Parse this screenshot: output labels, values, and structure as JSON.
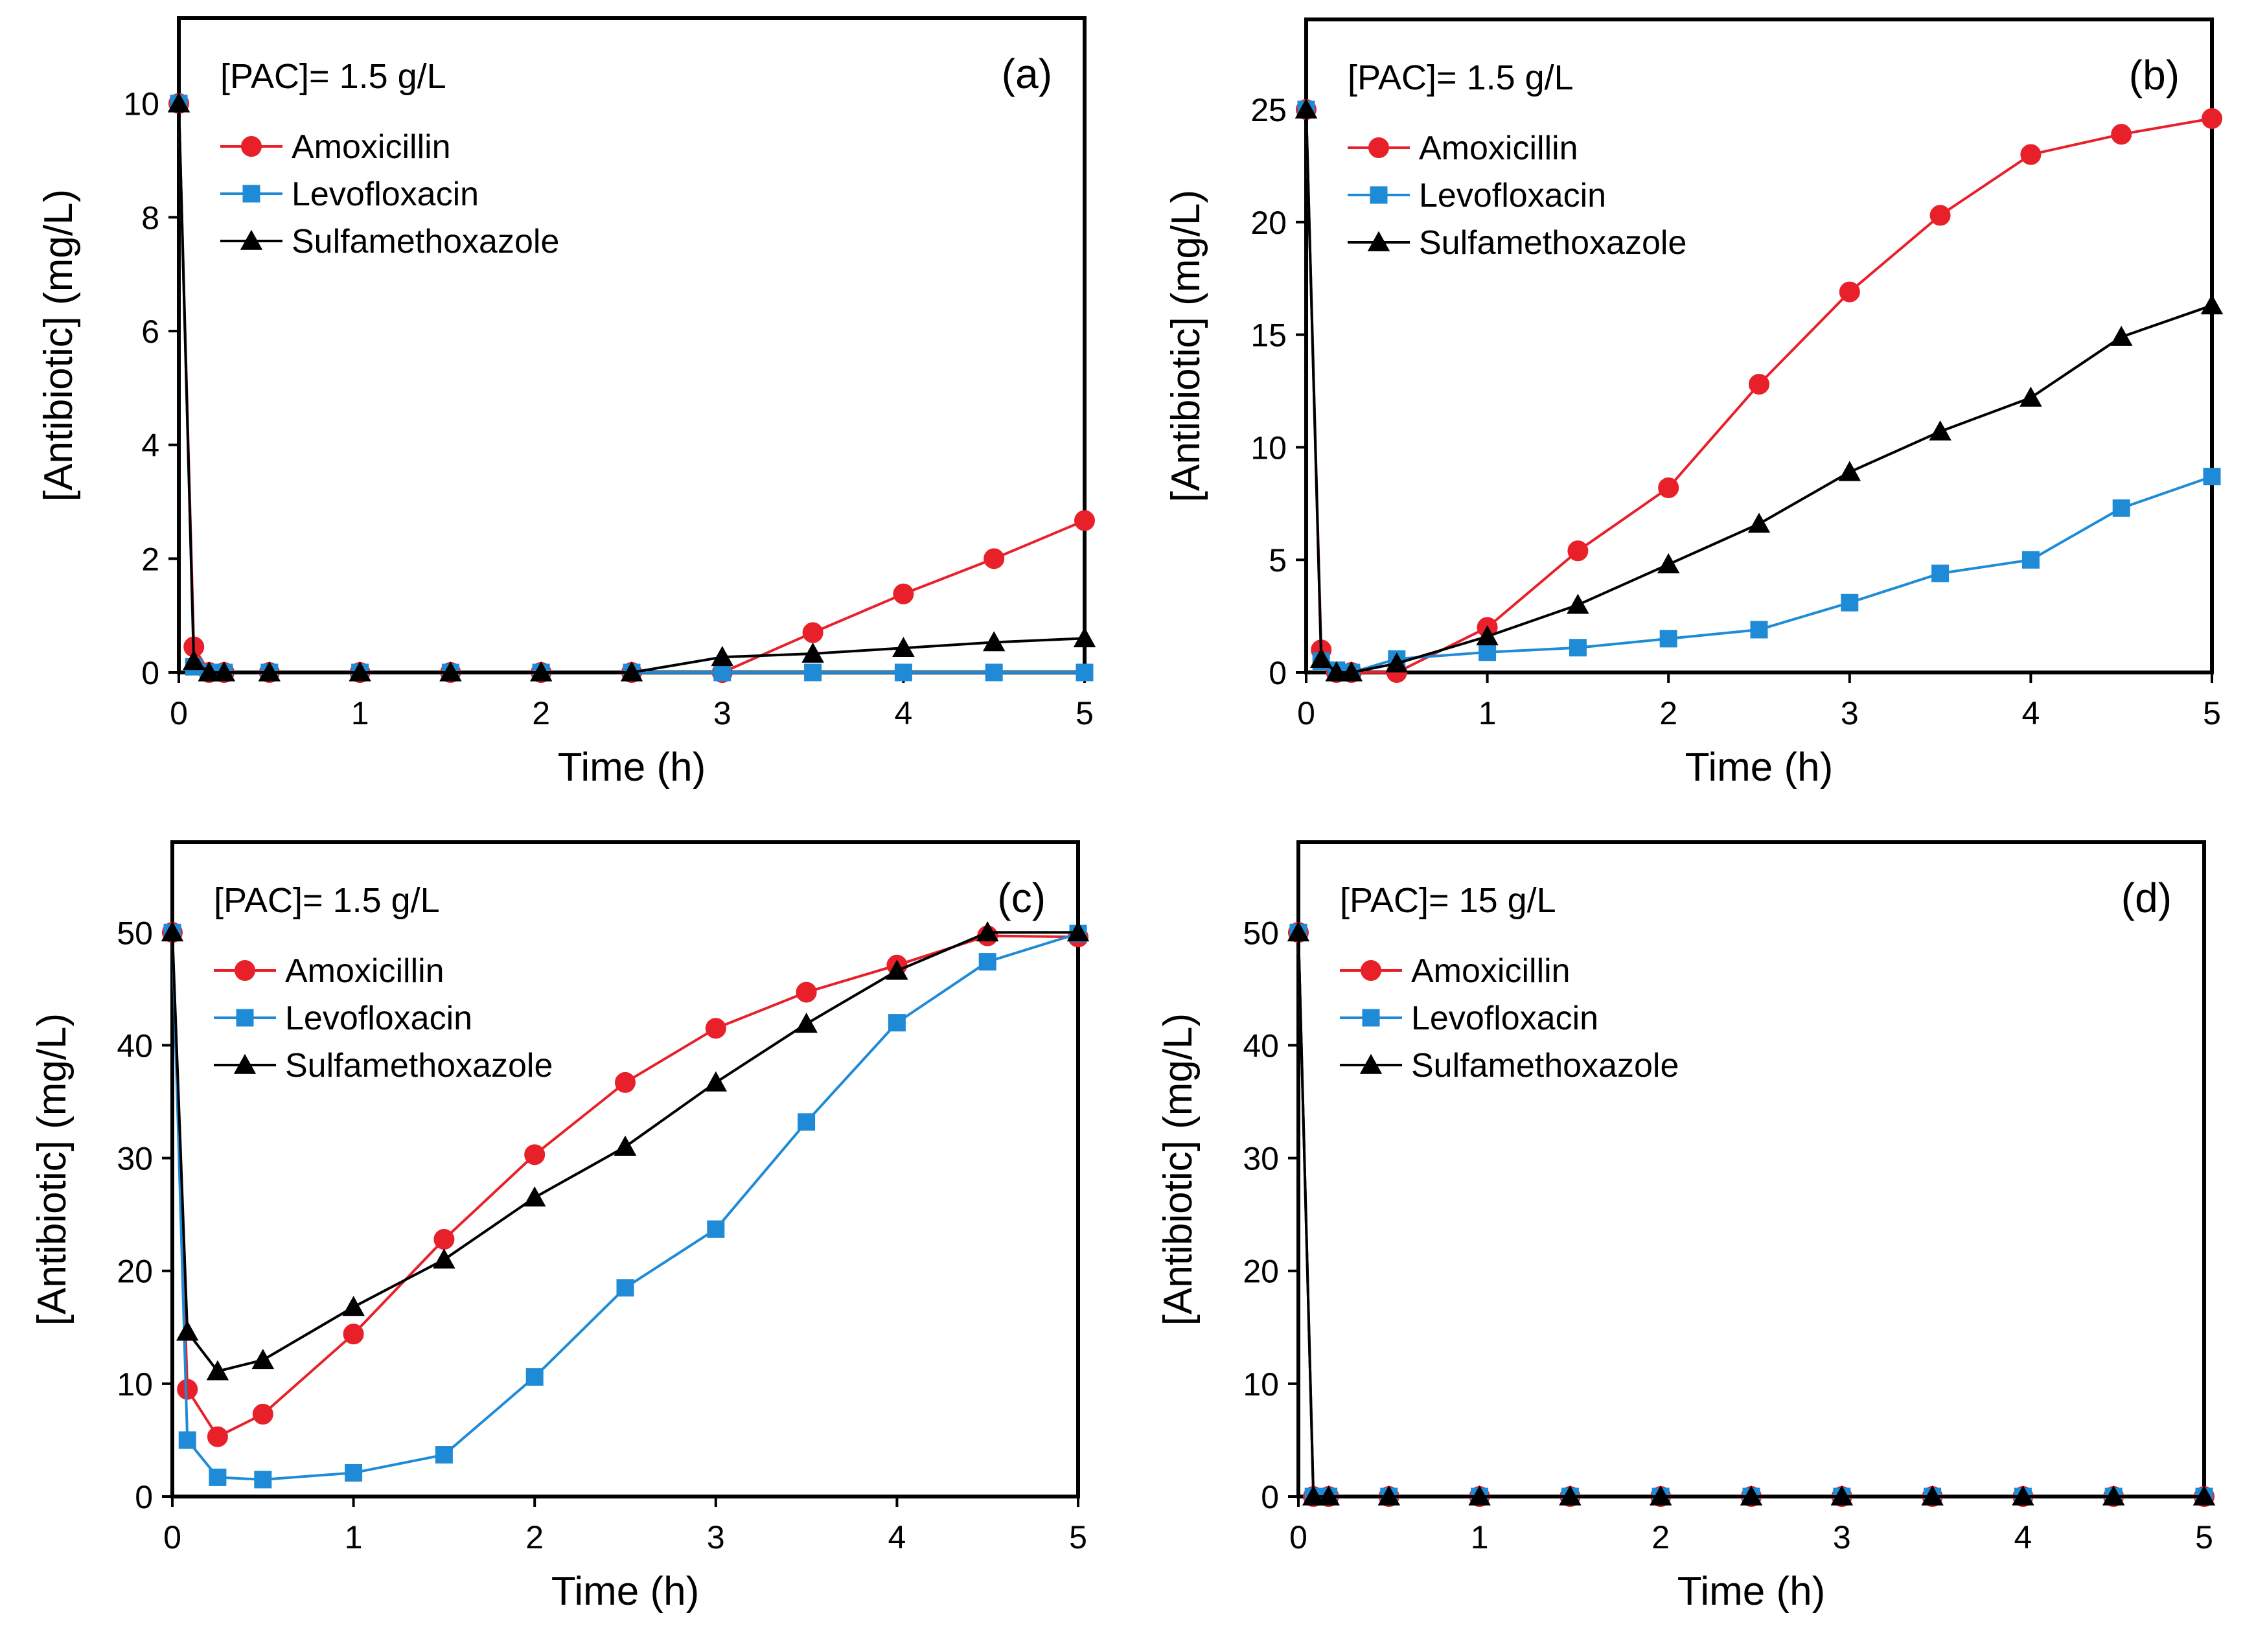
{
  "legend_labels": [
    "Amoxicillin",
    "Levofloxacin",
    "Sulfamethoxazole"
  ],
  "series_colors": [
    "#e8202a",
    "#1f8bd6",
    "#000000"
  ],
  "marker_shapes": [
    "circle",
    "square",
    "triangle"
  ],
  "chart_data": [
    {
      "type": "line",
      "panel_label": "(a)",
      "condition": "[PAC]= 1.5 g/L",
      "xlabel": "Time (h)",
      "ylabel": "[Antibiotic] (mg/L)",
      "xlim": [
        0,
        5
      ],
      "ylim": [
        0,
        11.5
      ],
      "xticks": [
        0,
        1,
        2,
        3,
        4,
        5
      ],
      "yticks": [
        0,
        2,
        4,
        6,
        8,
        10
      ],
      "grid": false,
      "legend_position": "top-left",
      "x": [
        0,
        0.083,
        0.167,
        0.25,
        0.5,
        1,
        1.5,
        2,
        2.5,
        3,
        3.5,
        4,
        4.5,
        5
      ],
      "series": [
        {
          "name": "Amoxicillin",
          "values": [
            10,
            0.45,
            0,
            0,
            0,
            0,
            0,
            0,
            0,
            0,
            0.7,
            1.38,
            2.0,
            2.67
          ]
        },
        {
          "name": "Levofloxacin",
          "values": [
            10,
            0.1,
            0,
            0,
            0,
            0,
            0,
            0,
            0,
            0,
            0,
            0,
            0,
            0
          ]
        },
        {
          "name": "Sulfamethoxazole",
          "values": [
            10,
            0.2,
            0,
            0,
            0,
            0,
            0,
            0,
            0,
            0.27,
            0.33,
            0.43,
            0.53,
            0.6
          ]
        }
      ]
    },
    {
      "type": "line",
      "panel_label": "(b)",
      "condition": "[PAC]= 1.5 g/L",
      "xlabel": "Time (h)",
      "ylabel": "[Antibiotic] (mg/L)",
      "xlim": [
        0,
        5
      ],
      "ylim": [
        0,
        29
      ],
      "xticks": [
        0,
        1,
        2,
        3,
        4,
        5
      ],
      "yticks": [
        0,
        5,
        10,
        15,
        20,
        25
      ],
      "grid": false,
      "legend_position": "top-left",
      "x": [
        0,
        0.083,
        0.167,
        0.25,
        0.5,
        1,
        1.5,
        2,
        2.5,
        3,
        3.5,
        4,
        4.5,
        5
      ],
      "series": [
        {
          "name": "Amoxicillin",
          "values": [
            25,
            1.0,
            0,
            0,
            0,
            2.0,
            5.4,
            8.2,
            12.8,
            16.9,
            20.3,
            23.0,
            23.9,
            24.6
          ]
        },
        {
          "name": "Levofloxacin",
          "values": [
            25,
            0.5,
            0.1,
            0,
            0.6,
            0.9,
            1.1,
            1.5,
            1.9,
            3.1,
            4.4,
            5.0,
            7.3,
            8.7
          ]
        },
        {
          "name": "Sulfamethoxazole",
          "values": [
            25,
            0.6,
            0,
            0,
            0.4,
            1.6,
            3.0,
            4.8,
            6.6,
            8.9,
            10.7,
            12.2,
            14.9,
            16.3
          ]
        }
      ]
    },
    {
      "type": "line",
      "panel_label": "(c)",
      "condition": "[PAC]= 1.5 g/L",
      "xlabel": "Time (h)",
      "ylabel": "[Antibiotic] (mg/L)",
      "xlim": [
        0,
        5
      ],
      "ylim": [
        0,
        58
      ],
      "xticks": [
        0,
        1,
        2,
        3,
        4,
        5
      ],
      "yticks": [
        0,
        10,
        20,
        30,
        40,
        50
      ],
      "grid": false,
      "legend_position": "top-left",
      "x": [
        0,
        0.083,
        0.25,
        0.5,
        1,
        1.5,
        2,
        2.5,
        3,
        3.5,
        4,
        4.5,
        5
      ],
      "series": [
        {
          "name": "Amoxicillin",
          "values": [
            50,
            9.5,
            5.3,
            7.3,
            14.4,
            22.8,
            30.3,
            36.7,
            41.5,
            44.7,
            47.1,
            49.7,
            49.6
          ]
        },
        {
          "name": "Levofloxacin",
          "values": [
            50,
            5.0,
            1.7,
            1.5,
            2.1,
            3.7,
            10.6,
            18.5,
            23.7,
            33.2,
            42.0,
            47.4,
            49.9
          ]
        },
        {
          "name": "Sulfamethoxazole",
          "values": [
            50,
            14.6,
            11.1,
            12.1,
            16.8,
            21.0,
            26.5,
            31.0,
            36.7,
            41.9,
            46.6,
            50.0,
            50.0
          ]
        }
      ]
    },
    {
      "type": "line",
      "panel_label": "(d)",
      "condition": "[PAC]= 15 g/L",
      "xlabel": "Time (h)",
      "ylabel": "[Antibiotic] (mg/L)",
      "xlim": [
        0,
        5
      ],
      "ylim": [
        0,
        58
      ],
      "xticks": [
        0,
        1,
        2,
        3,
        4,
        5
      ],
      "yticks": [
        0,
        10,
        20,
        30,
        40,
        50
      ],
      "grid": false,
      "legend_position": "top-left",
      "x": [
        0,
        0.083,
        0.167,
        0.5,
        1,
        1.5,
        2,
        2.5,
        3,
        3.5,
        4,
        4.5,
        5
      ],
      "series": [
        {
          "name": "Amoxicillin",
          "values": [
            50,
            0,
            0,
            0,
            0,
            0,
            0,
            0,
            0,
            0,
            0,
            0,
            0
          ]
        },
        {
          "name": "Levofloxacin",
          "values": [
            50,
            0,
            0,
            0,
            0,
            0,
            0,
            0,
            0,
            0,
            0,
            0,
            0
          ]
        },
        {
          "name": "Sulfamethoxazole",
          "values": [
            50,
            0,
            0,
            0,
            0,
            0,
            0,
            0,
            0,
            0,
            0,
            0,
            0
          ]
        }
      ]
    }
  ]
}
